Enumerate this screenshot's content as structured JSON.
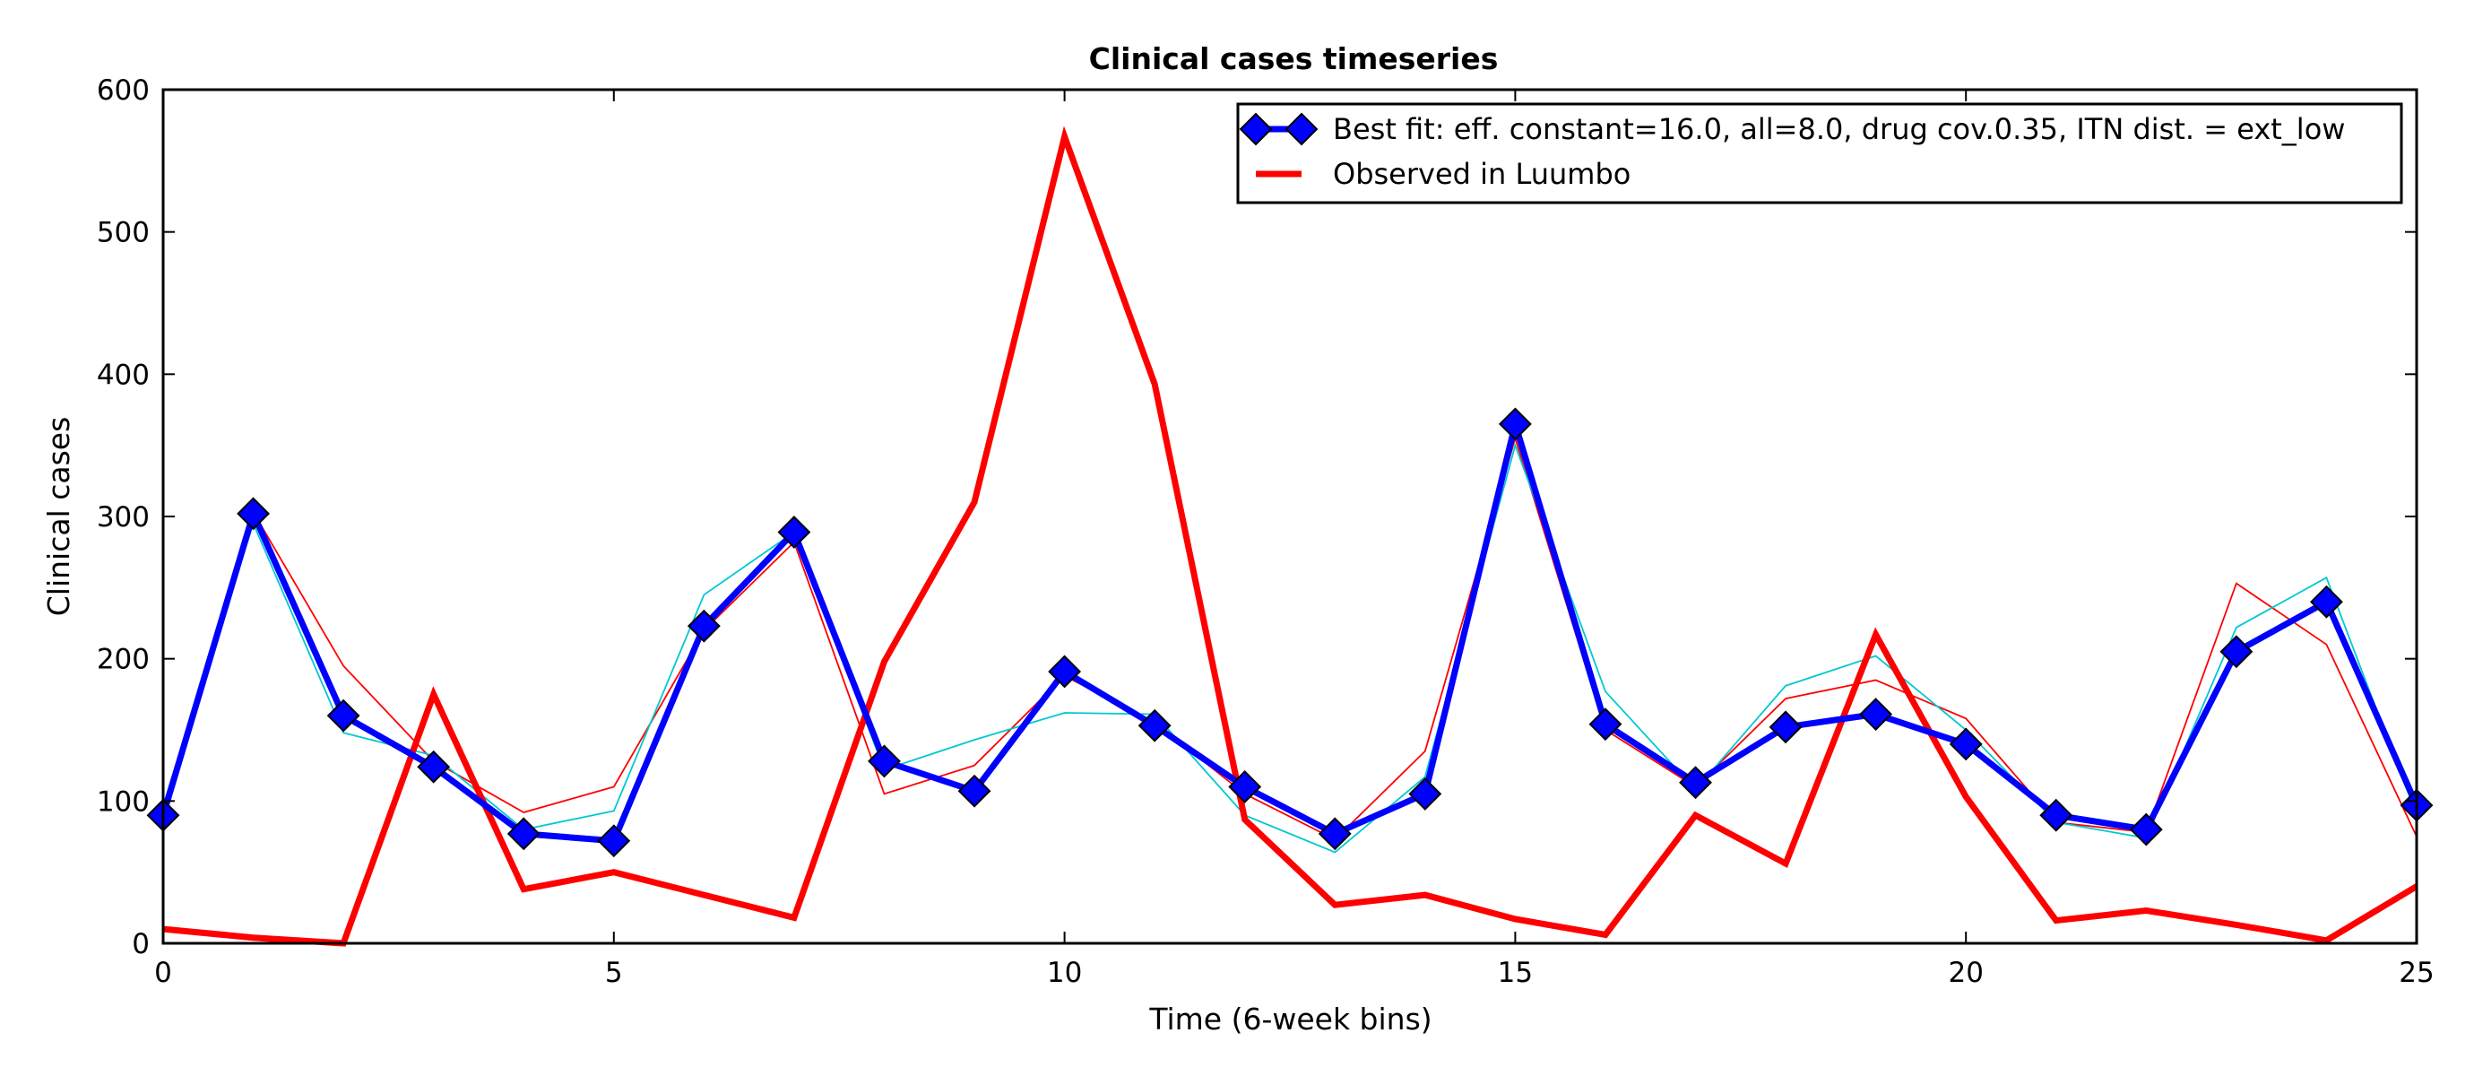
{
  "chart_data": {
    "type": "line",
    "title": "Clinical cases timeseries",
    "xlabel": "Time (6-week bins)",
    "ylabel": "Clinical cases",
    "xlim": [
      0,
      25
    ],
    "ylim": [
      0,
      600
    ],
    "xticks": [
      0,
      5,
      10,
      15,
      20,
      25
    ],
    "yticks": [
      0,
      100,
      200,
      300,
      400,
      500,
      600
    ],
    "grid": false,
    "legend_position": "top-right",
    "x": [
      0,
      1,
      2,
      3,
      4,
      5,
      6,
      7,
      8,
      9,
      10,
      11,
      12,
      13,
      14,
      15,
      16,
      17,
      18,
      19,
      20,
      21,
      22,
      23,
      24,
      25
    ],
    "series": [
      {
        "name": "Best fit: eff. constant=16.0, all=8.0, drug cov.0.35, ITN dist. = ext_low",
        "color": "#0000ff",
        "marker": "diamond",
        "legend": true,
        "values": [
          90,
          302,
          160,
          124,
          77,
          72,
          223,
          289,
          128,
          107,
          191,
          153,
          110,
          77,
          105,
          365,
          154,
          113,
          152,
          161,
          140,
          90,
          80,
          205,
          240,
          97
        ]
      },
      {
        "name": "Observed in Luumbo",
        "color": "#ff0000",
        "marker": "none",
        "legend": true,
        "values": [
          10,
          4,
          0,
          175,
          38,
          50,
          34,
          18,
          198,
          310,
          567,
          393,
          87,
          27,
          34,
          17,
          6,
          90,
          56,
          217,
          103,
          16,
          23,
          13,
          2,
          40
        ]
      },
      {
        "name": "",
        "color": "#ff0000",
        "marker": "none",
        "legend": false,
        "thin": true,
        "values": [
          85,
          303,
          195,
          128,
          92,
          110,
          220,
          282,
          105,
          125,
          188,
          155,
          105,
          73,
          135,
          355,
          150,
          110,
          172,
          185,
          158,
          85,
          78,
          253,
          210,
          75
        ]
      },
      {
        "name": "",
        "color": "#00c8d2",
        "marker": "none",
        "legend": false,
        "thin": true,
        "values": [
          97,
          295,
          148,
          132,
          80,
          93,
          245,
          289,
          122,
          143,
          162,
          161,
          90,
          64,
          117,
          350,
          177,
          108,
          181,
          202,
          150,
          85,
          74,
          222,
          257,
          90
        ]
      }
    ]
  }
}
